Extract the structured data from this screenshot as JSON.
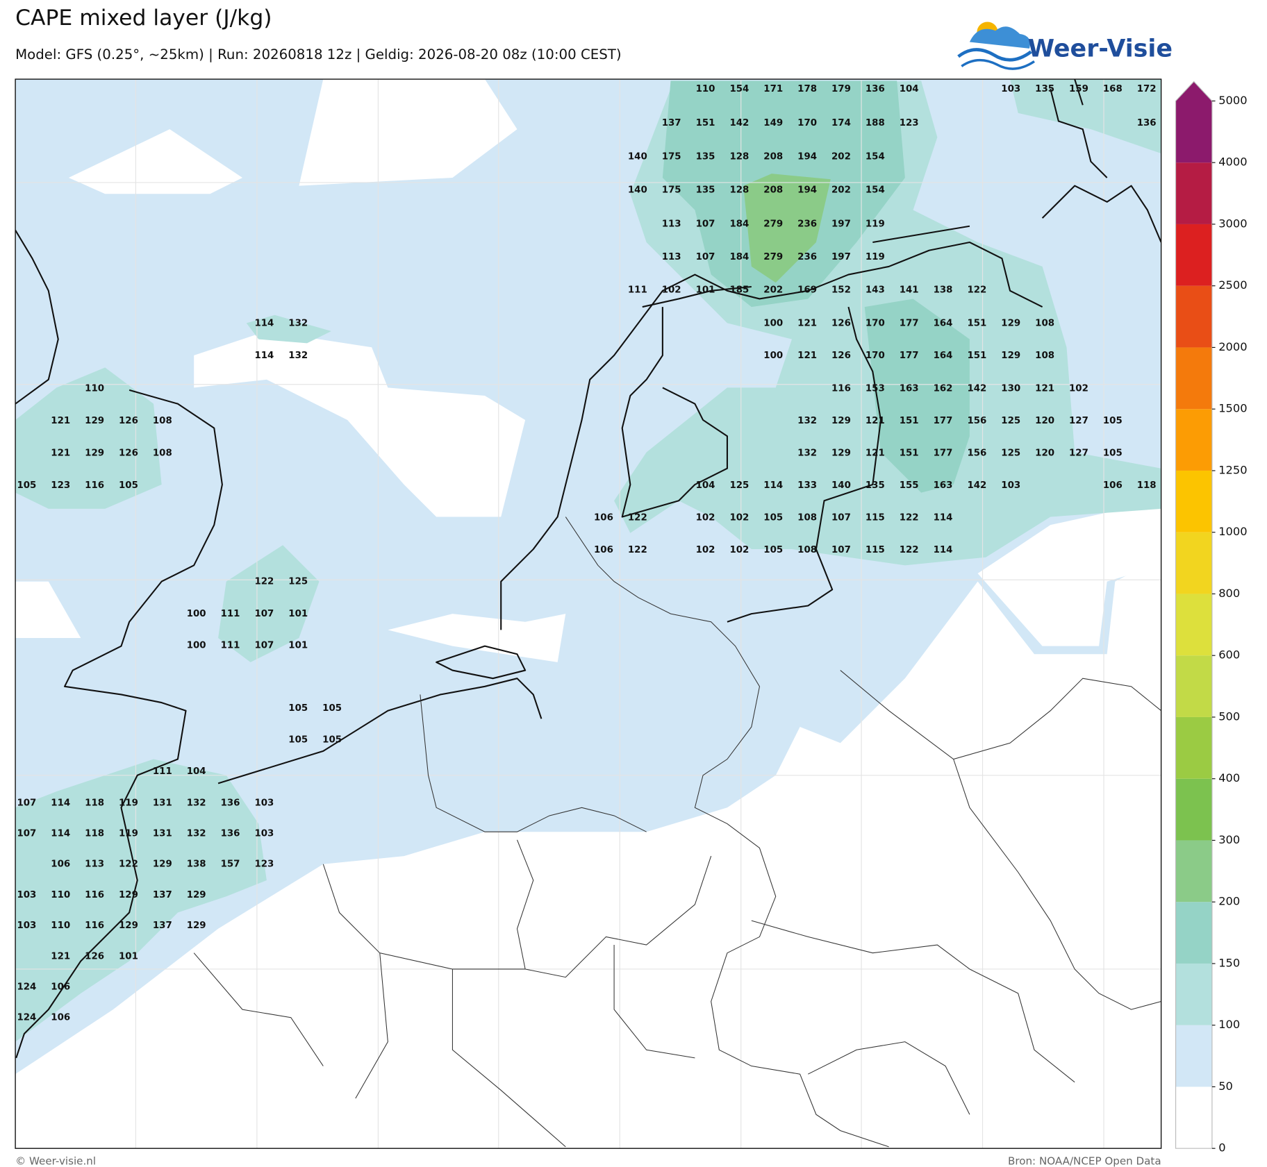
{
  "header": {
    "title": "CAPE mixed layer (J/kg)",
    "subtitle": "Model: GFS (0.25°, ~25km)  |  Run: 20260818 12z  |  Geldig: 2026-08-20 08z (10:00 CEST)",
    "logo": "Weer-Visie"
  },
  "footer": {
    "left": "© Weer-visie.nl",
    "right": "Bron: NOAA/NCEP Open Data"
  },
  "colorbar": {
    "levels": [
      0,
      50,
      100,
      150,
      200,
      300,
      400,
      500,
      600,
      800,
      1000,
      1250,
      1500,
      2000,
      2500,
      3000,
      4000,
      5000
    ],
    "colors": [
      "#ffffff",
      "#d2e7f6",
      "#b3e0dd",
      "#95d3c6",
      "#8bcb88",
      "#7cc24f",
      "#9bcb43",
      "#c2da47",
      "#dde03c",
      "#f2d51f",
      "#fcc400",
      "#fc9c04",
      "#f47a0c",
      "#e94e16",
      "#dc2020",
      "#b51c44",
      "#8c1a6c"
    ]
  },
  "value_rows": [
    [
      110,
      154,
      171,
      178,
      179,
      136,
      104,
      103,
      135,
      159,
      168,
      172
    ],
    [
      137,
      151,
      142,
      149,
      170,
      174,
      188,
      123,
      136
    ],
    [
      140,
      175,
      135,
      128,
      208,
      194,
      202,
      154
    ],
    [
      140,
      175,
      135,
      128,
      208,
      194,
      202,
      154
    ],
    [
      113,
      107,
      184,
      279,
      236,
      197,
      119
    ],
    [
      113,
      107,
      184,
      279,
      236,
      197,
      119
    ],
    [
      111,
      102,
      101,
      185,
      202,
      169,
      152,
      143,
      141,
      138,
      122
    ],
    [
      114,
      132,
      100,
      121,
      126,
      170,
      177,
      164,
      151,
      129,
      108
    ],
    [
      114,
      132,
      100,
      121,
      126,
      170,
      177,
      164,
      151,
      129,
      108
    ],
    [
      110,
      116,
      153,
      163,
      162,
      142,
      130,
      121,
      102
    ],
    [
      121,
      129,
      126,
      108,
      132,
      129,
      121,
      151,
      177,
      156,
      125,
      120,
      127,
      105
    ],
    [
      121,
      129,
      126,
      108,
      132,
      129,
      121,
      151,
      177,
      156,
      125,
      120,
      127,
      105
    ],
    [
      105,
      123,
      116,
      105,
      104,
      125,
      114,
      133,
      140,
      135,
      155,
      163,
      142,
      103,
      106,
      118
    ],
    [
      106,
      122,
      102,
      102,
      105,
      108,
      107,
      115,
      122,
      114
    ],
    [
      106,
      122,
      102,
      102,
      105,
      108,
      107,
      115,
      122,
      114
    ],
    [
      122,
      125
    ],
    [
      100,
      111,
      107,
      101
    ],
    [
      100,
      111,
      107,
      101
    ],
    [
      105,
      105
    ],
    [
      105,
      105
    ],
    [
      111,
      104
    ],
    [
      107,
      114,
      118,
      119,
      131,
      132,
      136,
      103
    ],
    [
      107,
      114,
      118,
      119,
      131,
      132,
      136,
      103
    ],
    [
      106,
      113,
      122,
      129,
      138,
      157,
      123
    ],
    [
      103,
      110,
      116,
      129,
      137,
      129
    ],
    [
      103,
      110,
      116,
      129,
      137,
      129
    ],
    [
      121,
      126,
      101
    ],
    [
      124,
      106
    ],
    [
      124,
      106
    ]
  ]
}
